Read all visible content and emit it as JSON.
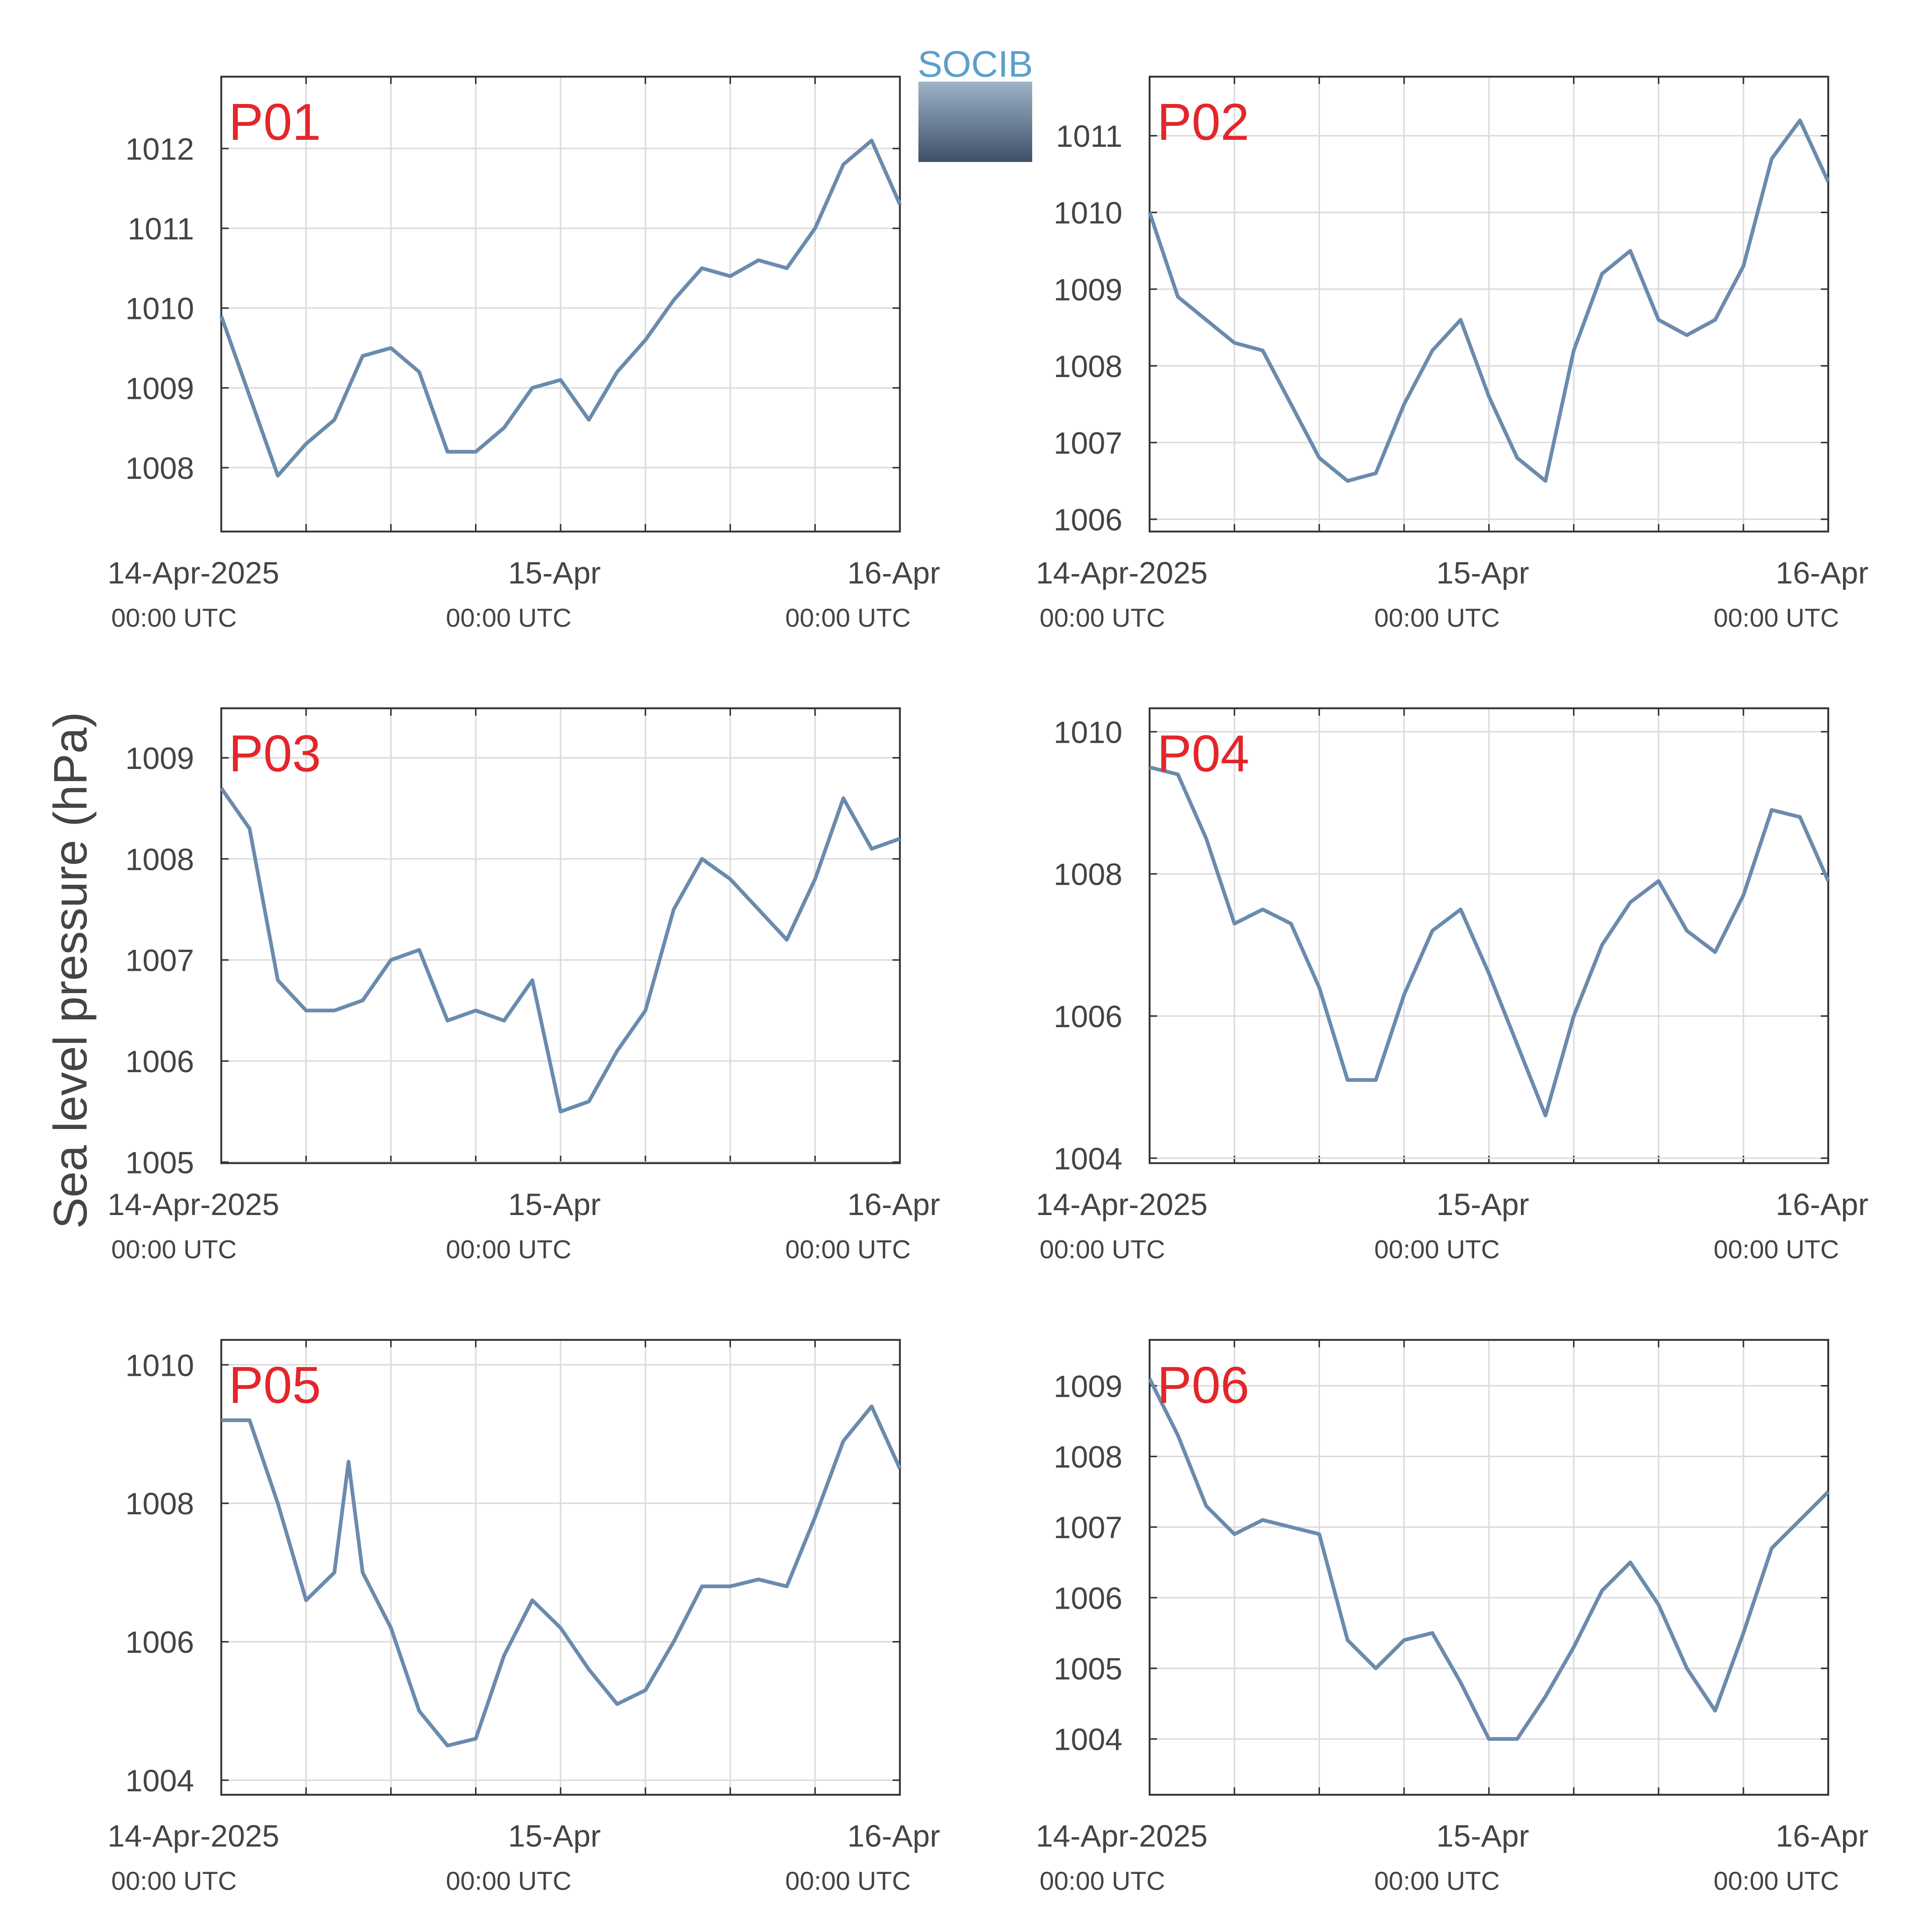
{
  "y_label": "Sea level pressure (hPa)",
  "logo": "SOCIB",
  "chart_data": [
    {
      "type": "line",
      "title": "P01",
      "color": "#6a8bad",
      "title_color": "#e3262b",
      "grid": true,
      "x": [
        "2025-04-14T00:00",
        "2025-04-14T02:00",
        "2025-04-14T04:00",
        "2025-04-14T06:00",
        "2025-04-14T08:00",
        "2025-04-14T10:00",
        "2025-04-14T12:00",
        "2025-04-14T14:00",
        "2025-04-14T16:00",
        "2025-04-14T18:00",
        "2025-04-14T20:00",
        "2025-04-14T22:00",
        "2025-04-15T00:00",
        "2025-04-15T02:00",
        "2025-04-15T04:00",
        "2025-04-15T06:00",
        "2025-04-15T08:00",
        "2025-04-15T10:00",
        "2025-04-15T12:00",
        "2025-04-15T14:00",
        "2025-04-15T16:00",
        "2025-04-15T18:00",
        "2025-04-15T20:00",
        "2025-04-15T22:00",
        "2025-04-16T00:00"
      ],
      "values": [
        1009.9,
        1008.9,
        1007.9,
        1008.3,
        1008.6,
        1009.4,
        1009.5,
        1009.2,
        1008.2,
        1008.2,
        1008.5,
        1009.0,
        1009.1,
        1008.6,
        1009.2,
        1009.6,
        1010.1,
        1010.5,
        1010.4,
        1010.6,
        1010.5,
        1011.0,
        1011.8,
        1012.1,
        1011.3
      ],
      "xlim": [
        "2025-04-14T00:00",
        "2025-04-16T00:00"
      ],
      "xticks": [
        {
          "value": "2025-04-14T00:00",
          "label": "14-Apr-2025",
          "sublabel": "00:00 UTC"
        },
        {
          "value": "2025-04-15T00:00",
          "label": "15-Apr",
          "sublabel": "00:00 UTC"
        },
        {
          "value": "2025-04-16T00:00",
          "label": "16-Apr",
          "sublabel": "00:00 UTC"
        }
      ],
      "xgrid": [
        "2025-04-14T06:00",
        "2025-04-14T12:00",
        "2025-04-14T18:00",
        "2025-04-15T06:00",
        "2025-04-15T12:00",
        "2025-04-15T18:00"
      ],
      "ylim": [
        1007.2,
        1012.9
      ],
      "yticks": [
        1008,
        1009,
        1010,
        1011,
        1012
      ]
    },
    {
      "type": "line",
      "title": "P02",
      "color": "#6a8bad",
      "title_color": "#e3262b",
      "grid": true,
      "x": [
        "2025-04-14T00:00",
        "2025-04-14T02:00",
        "2025-04-14T04:00",
        "2025-04-14T06:00",
        "2025-04-14T08:00",
        "2025-04-14T10:00",
        "2025-04-14T12:00",
        "2025-04-14T14:00",
        "2025-04-14T16:00",
        "2025-04-14T18:00",
        "2025-04-14T20:00",
        "2025-04-14T22:00",
        "2025-04-15T00:00",
        "2025-04-15T02:00",
        "2025-04-15T04:00",
        "2025-04-15T06:00",
        "2025-04-15T08:00",
        "2025-04-15T10:00",
        "2025-04-15T12:00",
        "2025-04-15T14:00",
        "2025-04-15T16:00",
        "2025-04-15T18:00",
        "2025-04-15T20:00",
        "2025-04-15T22:00",
        "2025-04-16T00:00"
      ],
      "values": [
        1010.0,
        1008.9,
        1008.6,
        1008.3,
        1008.2,
        1007.5,
        1006.8,
        1006.5,
        1006.6,
        1007.5,
        1008.2,
        1008.6,
        1007.6,
        1006.8,
        1006.5,
        1008.2,
        1009.2,
        1009.5,
        1008.6,
        1008.4,
        1008.6,
        1009.3,
        1010.7,
        1011.2,
        1010.4
      ],
      "xlim": [
        "2025-04-14T00:00",
        "2025-04-16T00:00"
      ],
      "xticks": [
        {
          "value": "2025-04-14T00:00",
          "label": "14-Apr-2025",
          "sublabel": "00:00 UTC"
        },
        {
          "value": "2025-04-15T00:00",
          "label": "15-Apr",
          "sublabel": "00:00 UTC"
        },
        {
          "value": "2025-04-16T00:00",
          "label": "16-Apr",
          "sublabel": "00:00 UTC"
        }
      ],
      "xgrid": [
        "2025-04-14T06:00",
        "2025-04-14T12:00",
        "2025-04-14T18:00",
        "2025-04-15T06:00",
        "2025-04-15T12:00",
        "2025-04-15T18:00"
      ],
      "ylim": [
        1005.84,
        1011.77
      ],
      "yticks": [
        1006,
        1007,
        1008,
        1009,
        1010,
        1011
      ]
    },
    {
      "type": "line",
      "title": "P03",
      "color": "#6a8bad",
      "title_color": "#e3262b",
      "grid": true,
      "x": [
        "2025-04-14T00:00",
        "2025-04-14T02:00",
        "2025-04-14T04:00",
        "2025-04-14T06:00",
        "2025-04-14T08:00",
        "2025-04-14T10:00",
        "2025-04-14T12:00",
        "2025-04-14T14:00",
        "2025-04-14T16:00",
        "2025-04-14T18:00",
        "2025-04-14T20:00",
        "2025-04-14T22:00",
        "2025-04-15T00:00",
        "2025-04-15T02:00",
        "2025-04-15T04:00",
        "2025-04-15T06:00",
        "2025-04-15T08:00",
        "2025-04-15T10:00",
        "2025-04-15T12:00",
        "2025-04-15T14:00",
        "2025-04-15T16:00",
        "2025-04-15T18:00",
        "2025-04-15T20:00",
        "2025-04-15T22:00",
        "2025-04-16T00:00"
      ],
      "values": [
        1008.7,
        1008.3,
        1006.8,
        1006.5,
        1006.5,
        1006.6,
        1007.0,
        1007.1,
        1006.4,
        1006.5,
        1006.4,
        1006.8,
        1005.5,
        1005.6,
        1006.1,
        1006.5,
        1007.5,
        1008.0,
        1007.8,
        1007.5,
        1007.2,
        1007.8,
        1008.6,
        1008.1,
        1008.2
      ],
      "xlim": [
        "2025-04-14T00:00",
        "2025-04-16T00:00"
      ],
      "xticks": [
        {
          "value": "2025-04-14T00:00",
          "label": "14-Apr-2025",
          "sublabel": "00:00 UTC"
        },
        {
          "value": "2025-04-15T00:00",
          "label": "15-Apr",
          "sublabel": "00:00 UTC"
        },
        {
          "value": "2025-04-16T00:00",
          "label": "16-Apr",
          "sublabel": "00:00 UTC"
        }
      ],
      "xgrid": [
        "2025-04-14T06:00",
        "2025-04-14T12:00",
        "2025-04-14T18:00",
        "2025-04-15T06:00",
        "2025-04-15T12:00",
        "2025-04-15T18:00"
      ],
      "ylim": [
        1004.99,
        1009.49
      ],
      "yticks": [
        1005,
        1006,
        1007,
        1008,
        1009
      ]
    },
    {
      "type": "line",
      "title": "P04",
      "color": "#6a8bad",
      "title_color": "#e3262b",
      "grid": true,
      "x": [
        "2025-04-14T00:00",
        "2025-04-14T02:00",
        "2025-04-14T04:00",
        "2025-04-14T06:00",
        "2025-04-14T08:00",
        "2025-04-14T10:00",
        "2025-04-14T12:00",
        "2025-04-14T14:00",
        "2025-04-14T16:00",
        "2025-04-14T18:00",
        "2025-04-14T20:00",
        "2025-04-14T22:00",
        "2025-04-15T00:00",
        "2025-04-15T02:00",
        "2025-04-15T04:00",
        "2025-04-15T06:00",
        "2025-04-15T08:00",
        "2025-04-15T10:00",
        "2025-04-15T12:00",
        "2025-04-15T14:00",
        "2025-04-15T16:00",
        "2025-04-15T18:00",
        "2025-04-15T20:00",
        "2025-04-15T22:00",
        "2025-04-16T00:00"
      ],
      "values": [
        1009.5,
        1009.4,
        1008.5,
        1007.3,
        1007.5,
        1007.3,
        1006.4,
        1005.1,
        1005.1,
        1006.3,
        1007.2,
        1007.5,
        1006.6,
        1005.6,
        1004.6,
        1006.0,
        1007.0,
        1007.6,
        1007.9,
        1007.2,
        1006.9,
        1007.7,
        1008.9,
        1008.8,
        1007.9
      ],
      "xlim": [
        "2025-04-14T00:00",
        "2025-04-16T00:00"
      ],
      "xticks": [
        {
          "value": "2025-04-14T00:00",
          "label": "14-Apr-2025",
          "sublabel": "00:00 UTC"
        },
        {
          "value": "2025-04-15T00:00",
          "label": "15-Apr",
          "sublabel": "00:00 UTC"
        },
        {
          "value": "2025-04-16T00:00",
          "label": "16-Apr",
          "sublabel": "00:00 UTC"
        }
      ],
      "xgrid": [
        "2025-04-14T06:00",
        "2025-04-14T12:00",
        "2025-04-14T18:00",
        "2025-04-15T06:00",
        "2025-04-15T12:00",
        "2025-04-15T18:00"
      ],
      "ylim": [
        1003.93,
        1010.33
      ],
      "yticks": [
        1004,
        1006,
        1008,
        1010
      ]
    },
    {
      "type": "line",
      "title": "P05",
      "color": "#6a8bad",
      "title_color": "#e3262b",
      "grid": true,
      "x": [
        "2025-04-14T00:00",
        "2025-04-14T02:00",
        "2025-04-14T04:00",
        "2025-04-14T06:00",
        "2025-04-14T08:00",
        "2025-04-14T09:00",
        "2025-04-14T10:00",
        "2025-04-14T12:00",
        "2025-04-14T14:00",
        "2025-04-14T16:00",
        "2025-04-14T18:00",
        "2025-04-14T20:00",
        "2025-04-14T22:00",
        "2025-04-15T00:00",
        "2025-04-15T02:00",
        "2025-04-15T04:00",
        "2025-04-15T06:00",
        "2025-04-15T08:00",
        "2025-04-15T10:00",
        "2025-04-15T12:00",
        "2025-04-15T14:00",
        "2025-04-15T16:00",
        "2025-04-15T18:00",
        "2025-04-15T20:00",
        "2025-04-15T22:00",
        "2025-04-16T00:00"
      ],
      "values": [
        1009.2,
        1009.2,
        1008.0,
        1006.6,
        1007.0,
        1008.6,
        1007.0,
        1006.2,
        1005.0,
        1004.5,
        1004.6,
        1005.8,
        1006.6,
        1006.2,
        1005.6,
        1005.1,
        1005.3,
        1006.0,
        1006.8,
        1006.8,
        1006.9,
        1006.8,
        1007.8,
        1008.9,
        1009.4,
        1008.5
      ],
      "xlim": [
        "2025-04-14T00:00",
        "2025-04-16T00:00"
      ],
      "xticks": [
        {
          "value": "2025-04-14T00:00",
          "label": "14-Apr-2025",
          "sublabel": "00:00 UTC"
        },
        {
          "value": "2025-04-15T00:00",
          "label": "15-Apr",
          "sublabel": "00:00 UTC"
        },
        {
          "value": "2025-04-16T00:00",
          "label": "16-Apr",
          "sublabel": "00:00 UTC"
        }
      ],
      "xgrid": [
        "2025-04-14T06:00",
        "2025-04-14T12:00",
        "2025-04-14T18:00",
        "2025-04-15T06:00",
        "2025-04-15T12:00",
        "2025-04-15T18:00"
      ],
      "ylim": [
        1003.79,
        1010.36
      ],
      "yticks": [
        1004,
        1006,
        1008,
        1010
      ]
    },
    {
      "type": "line",
      "title": "P06",
      "color": "#6a8bad",
      "title_color": "#e3262b",
      "grid": true,
      "x": [
        "2025-04-14T00:00",
        "2025-04-14T02:00",
        "2025-04-14T04:00",
        "2025-04-14T06:00",
        "2025-04-14T08:00",
        "2025-04-14T10:00",
        "2025-04-14T12:00",
        "2025-04-14T14:00",
        "2025-04-14T16:00",
        "2025-04-14T18:00",
        "2025-04-14T20:00",
        "2025-04-14T22:00",
        "2025-04-15T00:00",
        "2025-04-15T02:00",
        "2025-04-15T04:00",
        "2025-04-15T06:00",
        "2025-04-15T08:00",
        "2025-04-15T10:00",
        "2025-04-15T12:00",
        "2025-04-15T14:00",
        "2025-04-15T16:00",
        "2025-04-15T18:00",
        "2025-04-15T20:00",
        "2025-04-15T22:00",
        "2025-04-16T00:00"
      ],
      "values": [
        1009.1,
        1008.3,
        1007.3,
        1006.9,
        1007.1,
        1007.0,
        1006.9,
        1005.4,
        1005.0,
        1005.4,
        1005.5,
        1004.8,
        1004.0,
        1004.0,
        1004.6,
        1005.3,
        1006.1,
        1006.5,
        1005.9,
        1005.0,
        1004.4,
        1005.5,
        1006.7,
        1007.1,
        1007.5
      ],
      "xlim": [
        "2025-04-14T00:00",
        "2025-04-16T00:00"
      ],
      "xticks": [
        {
          "value": "2025-04-14T00:00",
          "label": "14-Apr-2025",
          "sublabel": "00:00 UTC"
        },
        {
          "value": "2025-04-15T00:00",
          "label": "15-Apr",
          "sublabel": "00:00 UTC"
        },
        {
          "value": "2025-04-16T00:00",
          "label": "16-Apr",
          "sublabel": "00:00 UTC"
        }
      ],
      "xgrid": [
        "2025-04-14T06:00",
        "2025-04-14T12:00",
        "2025-04-14T18:00",
        "2025-04-15T06:00",
        "2025-04-15T12:00",
        "2025-04-15T18:00"
      ],
      "ylim": [
        1003.21,
        1009.65
      ],
      "yticks": [
        1004,
        1005,
        1006,
        1007,
        1008,
        1009
      ]
    }
  ]
}
